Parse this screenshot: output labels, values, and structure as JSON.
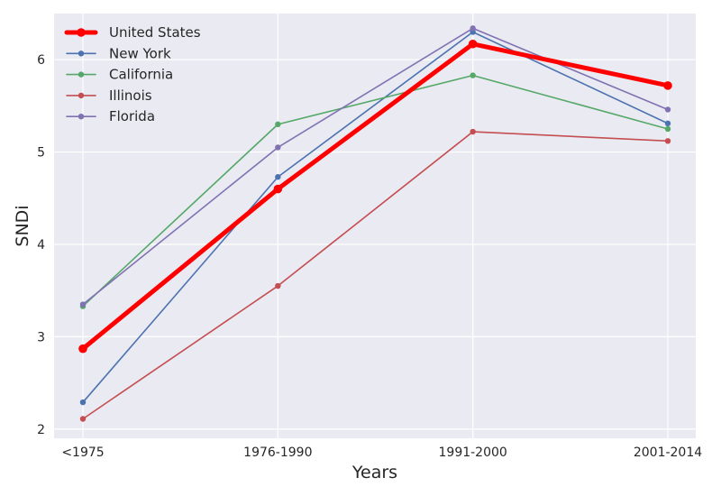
{
  "chart_data": {
    "type": "line",
    "categories": [
      "<1975",
      "1976-1990",
      "1991-2000",
      "2001-2014"
    ],
    "xlabel": "Years",
    "ylabel": "SNDi",
    "ylim": [
      1.9,
      6.5
    ],
    "yticks": [
      2,
      3,
      4,
      5,
      6
    ],
    "grid": true,
    "legend_position": "top-left",
    "series": [
      {
        "name": "United States",
        "color": "#ff0000",
        "emphasis": true,
        "values": [
          2.87,
          4.6,
          6.17,
          5.72
        ]
      },
      {
        "name": "New York",
        "color": "#4c72b0",
        "values": [
          2.29,
          4.73,
          6.3,
          5.31
        ]
      },
      {
        "name": "California",
        "color": "#55a868",
        "values": [
          3.33,
          5.3,
          5.83,
          5.25
        ]
      },
      {
        "name": "Illinois",
        "color": "#c44e52",
        "values": [
          2.11,
          3.55,
          5.22,
          5.12
        ]
      },
      {
        "name": "Florida",
        "color": "#8172b2",
        "values": [
          3.35,
          5.05,
          6.34,
          5.46
        ]
      }
    ]
  },
  "colors": {
    "plot_background": "#eaeaf2",
    "grid": "#ffffff"
  }
}
